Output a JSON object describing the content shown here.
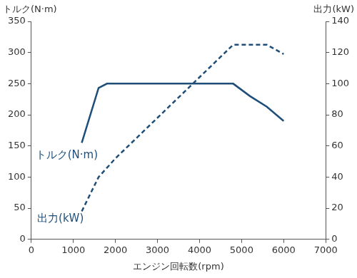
{
  "chart_data": {
    "type": "line",
    "x_label": "エンジン回転数(rpm)",
    "y_label": "トルク(N·m)",
    "y2_label": "出力(kW)",
    "xlim": [
      0,
      7000
    ],
    "xticks": [
      0,
      1000,
      2000,
      3000,
      4000,
      5000,
      6000,
      7000
    ],
    "ylim": [
      0,
      350
    ],
    "yticks": [
      0,
      50,
      100,
      150,
      200,
      250,
      300,
      350
    ],
    "y2lim": [
      0,
      140
    ],
    "y2ticks": [
      0,
      20,
      40,
      60,
      80,
      100,
      120,
      140
    ],
    "grid": false,
    "series": [
      {
        "name": "トルク(N·m)",
        "color": "#1f4e79",
        "line_style": "solid",
        "x": [
          1200,
          1600,
          1800,
          4800,
          5200,
          5600,
          6000
        ],
        "values": [
          155,
          243,
          250,
          250,
          230,
          213,
          190
        ]
      },
      {
        "name": "出力(kW)",
        "color": "#1f4e79",
        "line_style": "dashed",
        "axis": "y2",
        "x": [
          1200,
          1600,
          2000,
          4800,
          5600,
          6000
        ],
        "values": [
          18,
          40,
          52,
          125,
          125,
          119
        ]
      }
    ],
    "annotations": [
      {
        "text": "トルク(N·m)",
        "x": 100,
        "y": 135
      },
      {
        "text": "出力(kW)",
        "x": 140,
        "y": 33
      }
    ]
  }
}
